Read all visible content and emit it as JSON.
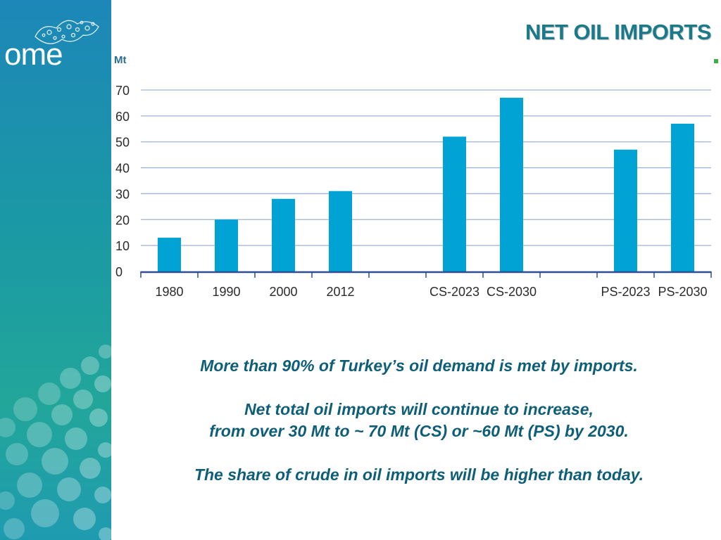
{
  "logo": {
    "text": "ome"
  },
  "slide": {
    "title": "NET OIL IMPORTS"
  },
  "colors": {
    "bar": "#00a3d3",
    "grid": "#9fb3d6",
    "axis": "#2f4f8f",
    "sidebar": "#1b9aa3",
    "title": "#1a7a8a",
    "notes": "#0e5e78"
  },
  "chart_data": {
    "type": "bar",
    "ylabel": "Mt",
    "ylim": [
      0,
      70
    ],
    "yticks": [
      0,
      10,
      20,
      30,
      40,
      50,
      60,
      70
    ],
    "grid": true,
    "categories": [
      "1980",
      "1990",
      "2000",
      "2012",
      "",
      "CS-2023",
      "CS-2030",
      "",
      "PS-2023",
      "PS-2030"
    ],
    "values": [
      13,
      20,
      28,
      31,
      null,
      52,
      67,
      null,
      47,
      57
    ]
  },
  "notes": {
    "line1": "More than 90% of Turkey’s oil demand is met by imports.",
    "line2": "Net total oil imports will continue to increase,",
    "line3": "from over 30 Mt to ~ 70 Mt  (CS) or ~60 Mt (PS) by 2030.",
    "line4": "The share of crude in oil imports will be higher than today."
  }
}
